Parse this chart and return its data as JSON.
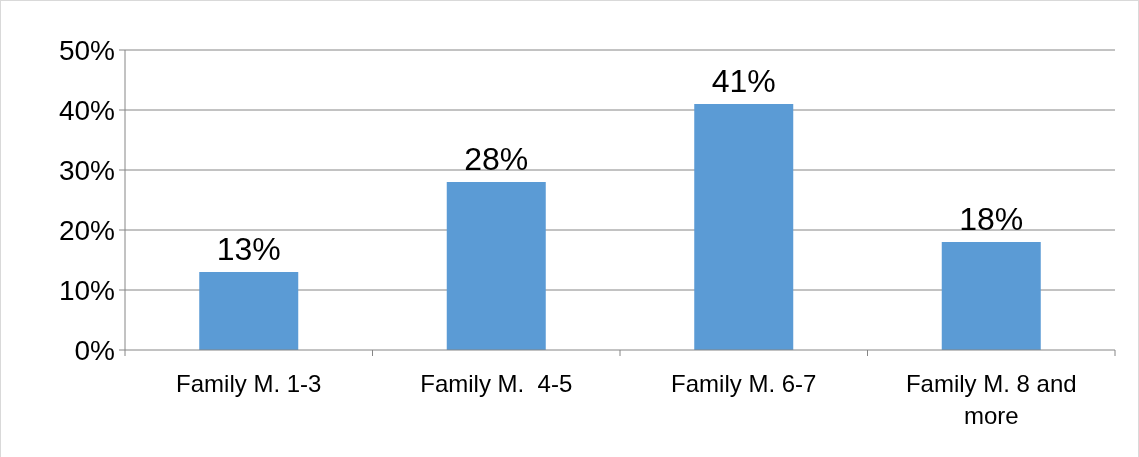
{
  "chart_data": {
    "type": "bar",
    "categories": [
      "Family M. 1-3",
      "Family M.  4-5",
      "Family M. 6-7",
      "Family M. 8 and more"
    ],
    "values": [
      13,
      28,
      41,
      18
    ],
    "value_labels": [
      "13%",
      "28%",
      "41%",
      "18%"
    ],
    "color": "#5b9bd5",
    "ylim": [
      0,
      50
    ],
    "yticks": [
      {
        "value": 0,
        "label": "0%"
      },
      {
        "value": 10,
        "label": "10%"
      },
      {
        "value": 20,
        "label": "20%"
      },
      {
        "value": 30,
        "label": "30%"
      },
      {
        "value": 40,
        "label": "40%"
      },
      {
        "value": 50,
        "label": "50%"
      }
    ],
    "grid": "y"
  }
}
